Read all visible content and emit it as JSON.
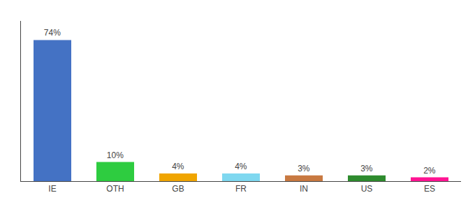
{
  "chart_data": {
    "type": "bar",
    "categories": [
      "IE",
      "OTH",
      "GB",
      "FR",
      "IN",
      "US",
      "ES"
    ],
    "values": [
      74,
      10,
      4,
      4,
      3,
      3,
      2
    ],
    "value_labels": [
      "74%",
      "10%",
      "4%",
      "4%",
      "3%",
      "3%",
      "2%"
    ],
    "colors": [
      "#4472c4",
      "#2ecc40",
      "#f0a500",
      "#7fd8f0",
      "#c87941",
      "#2e8b2e",
      "#ff1493"
    ],
    "ylim": [
      0,
      84
    ],
    "data_labels": true,
    "tick_labels": "x",
    "grid": false
  }
}
